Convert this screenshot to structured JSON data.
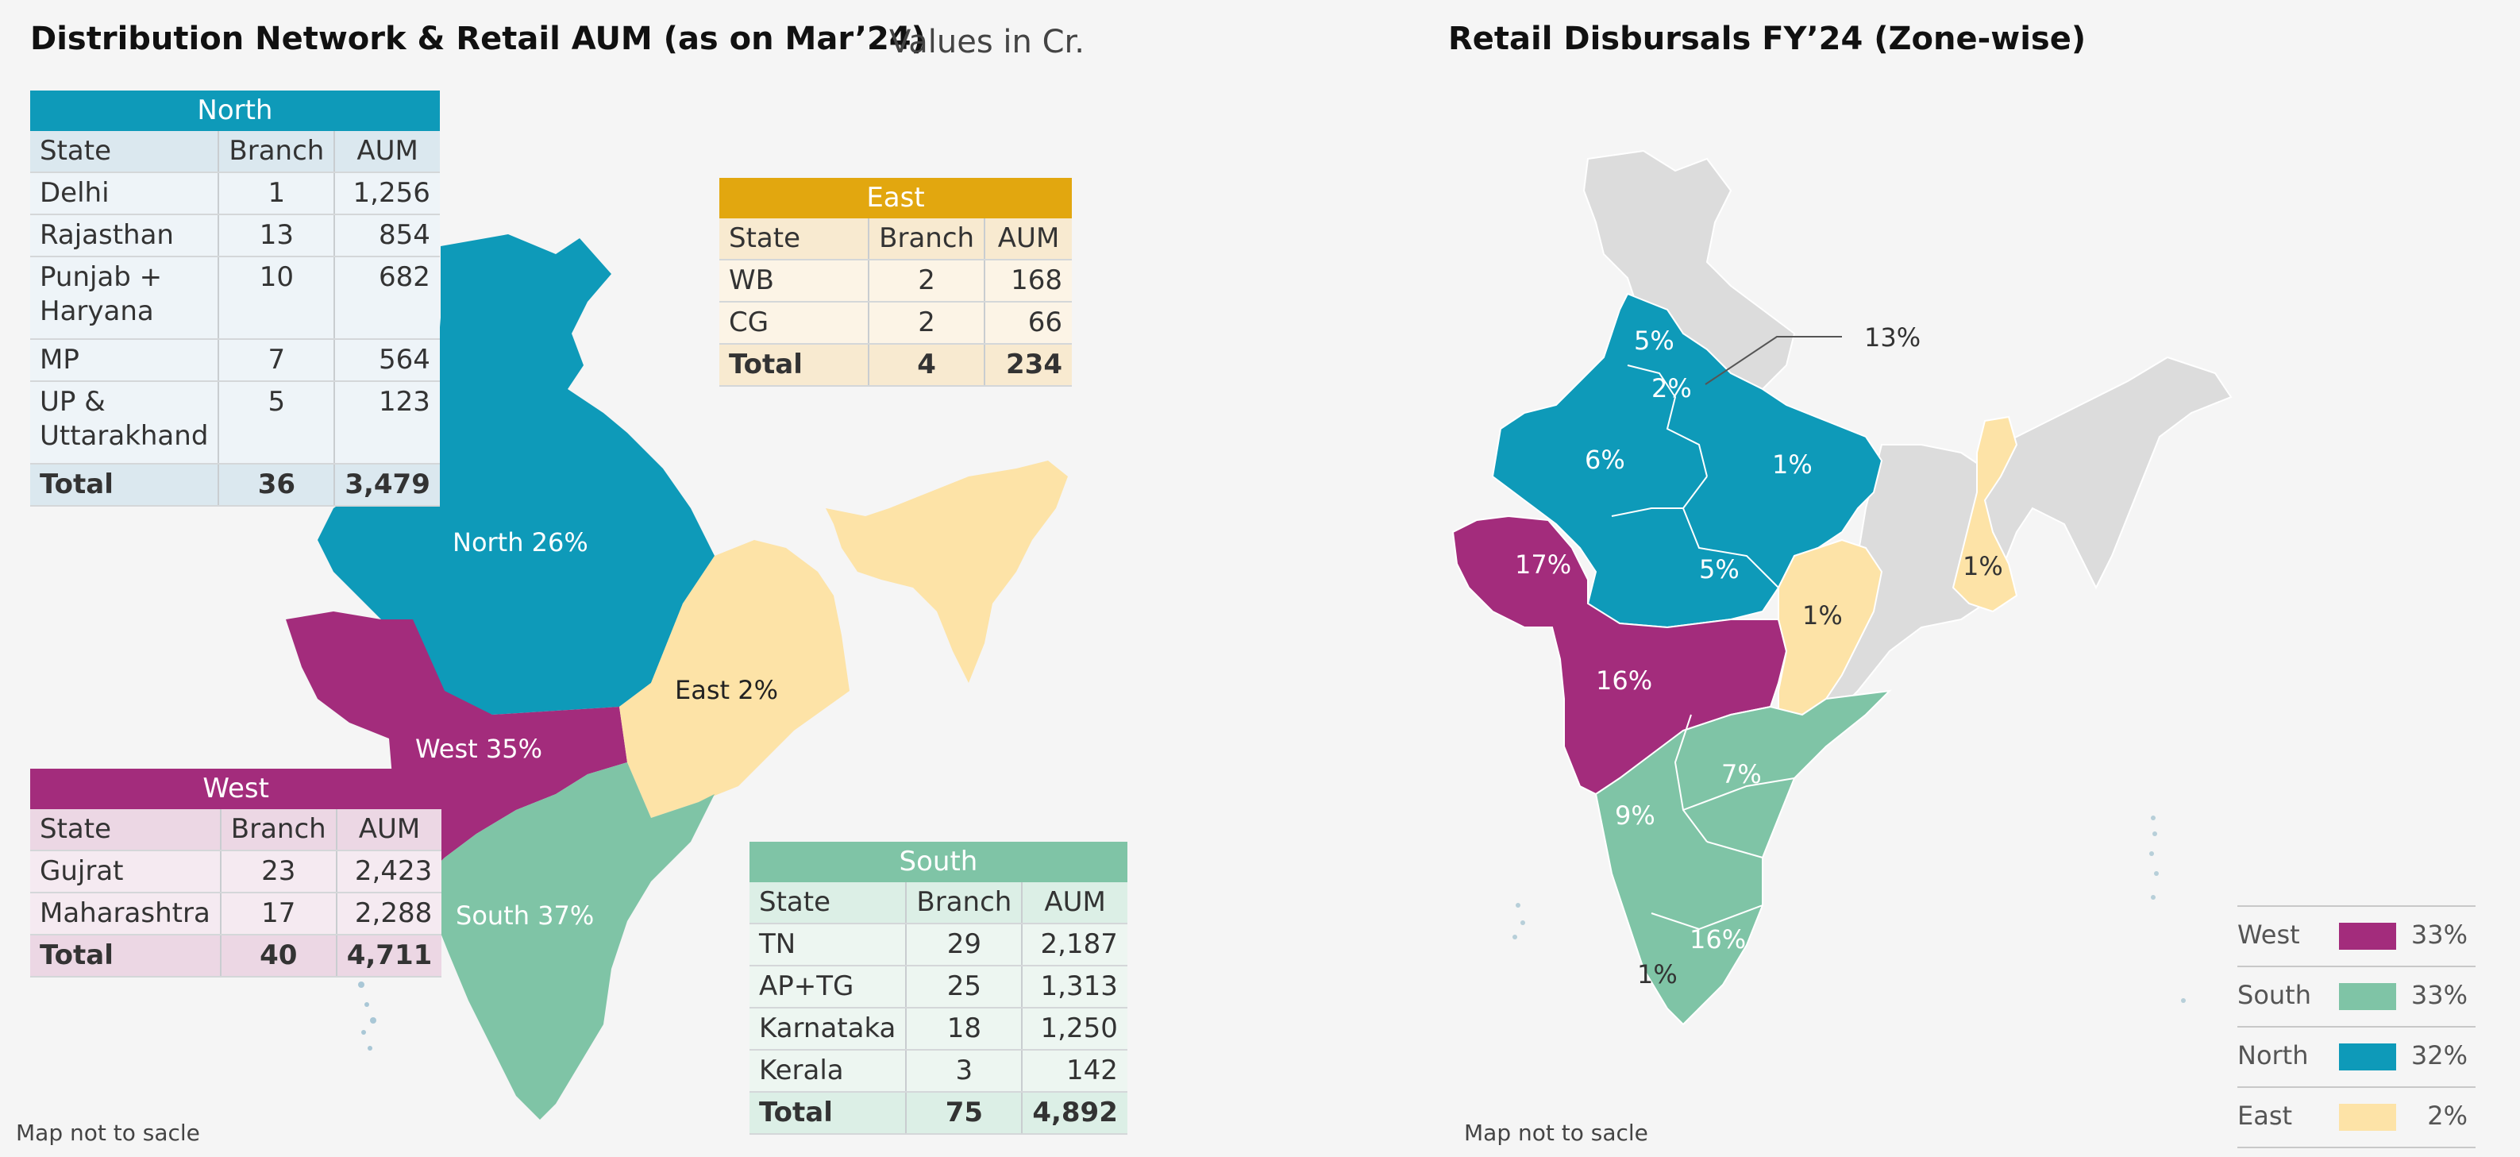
{
  "left": {
    "title": "Distribution Network & Retail AUM (as on Mar’24)",
    "unit_note": "Values in Cr.",
    "footnote": "Map not to sacle",
    "column_headers": [
      "State",
      "Branch",
      "AUM"
    ],
    "map_labels": {
      "north": "North 26%",
      "west": "West 35%",
      "east": "East 2%",
      "south": "South 37%"
    },
    "tables": {
      "north": {
        "zone": "North",
        "color": "#0e9ab9",
        "rows": [
          {
            "state": "Delhi",
            "branch": "1",
            "aum": "1,256"
          },
          {
            "state": "Rajasthan",
            "branch": "13",
            "aum": "854"
          },
          {
            "state": "Punjab + Haryana",
            "branch": "10",
            "aum": "682"
          },
          {
            "state": "MP",
            "branch": "7",
            "aum": "564"
          },
          {
            "state": "UP & Uttarakhand",
            "branch": "5",
            "aum": "123"
          }
        ],
        "total": {
          "state": "Total",
          "branch": "36",
          "aum": "3,479"
        }
      },
      "east": {
        "zone": "East",
        "color": "#e2a70f",
        "rows": [
          {
            "state": "WB",
            "branch": "2",
            "aum": "168"
          },
          {
            "state": "CG",
            "branch": "2",
            "aum": "66"
          }
        ],
        "total": {
          "state": "Total",
          "branch": "4",
          "aum": "234"
        }
      },
      "west": {
        "zone": "West",
        "color": "#a32c7c",
        "rows": [
          {
            "state": "Gujrat",
            "branch": "23",
            "aum": "2,423"
          },
          {
            "state": "Maharashtra",
            "branch": "17",
            "aum": "2,288"
          }
        ],
        "total": {
          "state": "Total",
          "branch": "40",
          "aum": "4,711"
        }
      },
      "south": {
        "zone": "South",
        "color": "#7fc4a6",
        "rows": [
          {
            "state": "TN",
            "branch": "29",
            "aum": "2,187"
          },
          {
            "state": "AP+TG",
            "branch": "25",
            "aum": "1,313"
          },
          {
            "state": "Karnataka",
            "branch": "18",
            "aum": "1,250"
          },
          {
            "state": "Kerala",
            "branch": "3",
            "aum": "142"
          }
        ],
        "total": {
          "state": "Total",
          "branch": "75",
          "aum": "4,892"
        }
      }
    }
  },
  "right": {
    "title": "Retail Disbursals FY’24 (Zone-wise)",
    "footnote": "Map not to sacle",
    "state_labels": {
      "punjab": "5%",
      "haryana": "2%",
      "delhi": "13%",
      "rajasthan": "6%",
      "up": "1%",
      "gujarat": "17%",
      "mp": "5%",
      "cg": "1%",
      "wb": "1%",
      "maharashtra": "16%",
      "telangana": "7%",
      "karnataka": "9%",
      "tn": "16%",
      "kerala": "1%"
    },
    "legend": [
      {
        "zone": "West",
        "pct": "33%",
        "color": "#a32c7c"
      },
      {
        "zone": "South",
        "pct": "33%",
        "color": "#7fc4a6"
      },
      {
        "zone": "North",
        "pct": "32%",
        "color": "#0e9ab9"
      },
      {
        "zone": "East",
        "pct": "2%",
        "color": "#fde3a7"
      }
    ]
  },
  "colors": {
    "north": "#0e9ab9",
    "west": "#a32c7c",
    "south": "#7fc4a6",
    "east": "#fde3a7",
    "grey": "#dcdcdc"
  }
}
